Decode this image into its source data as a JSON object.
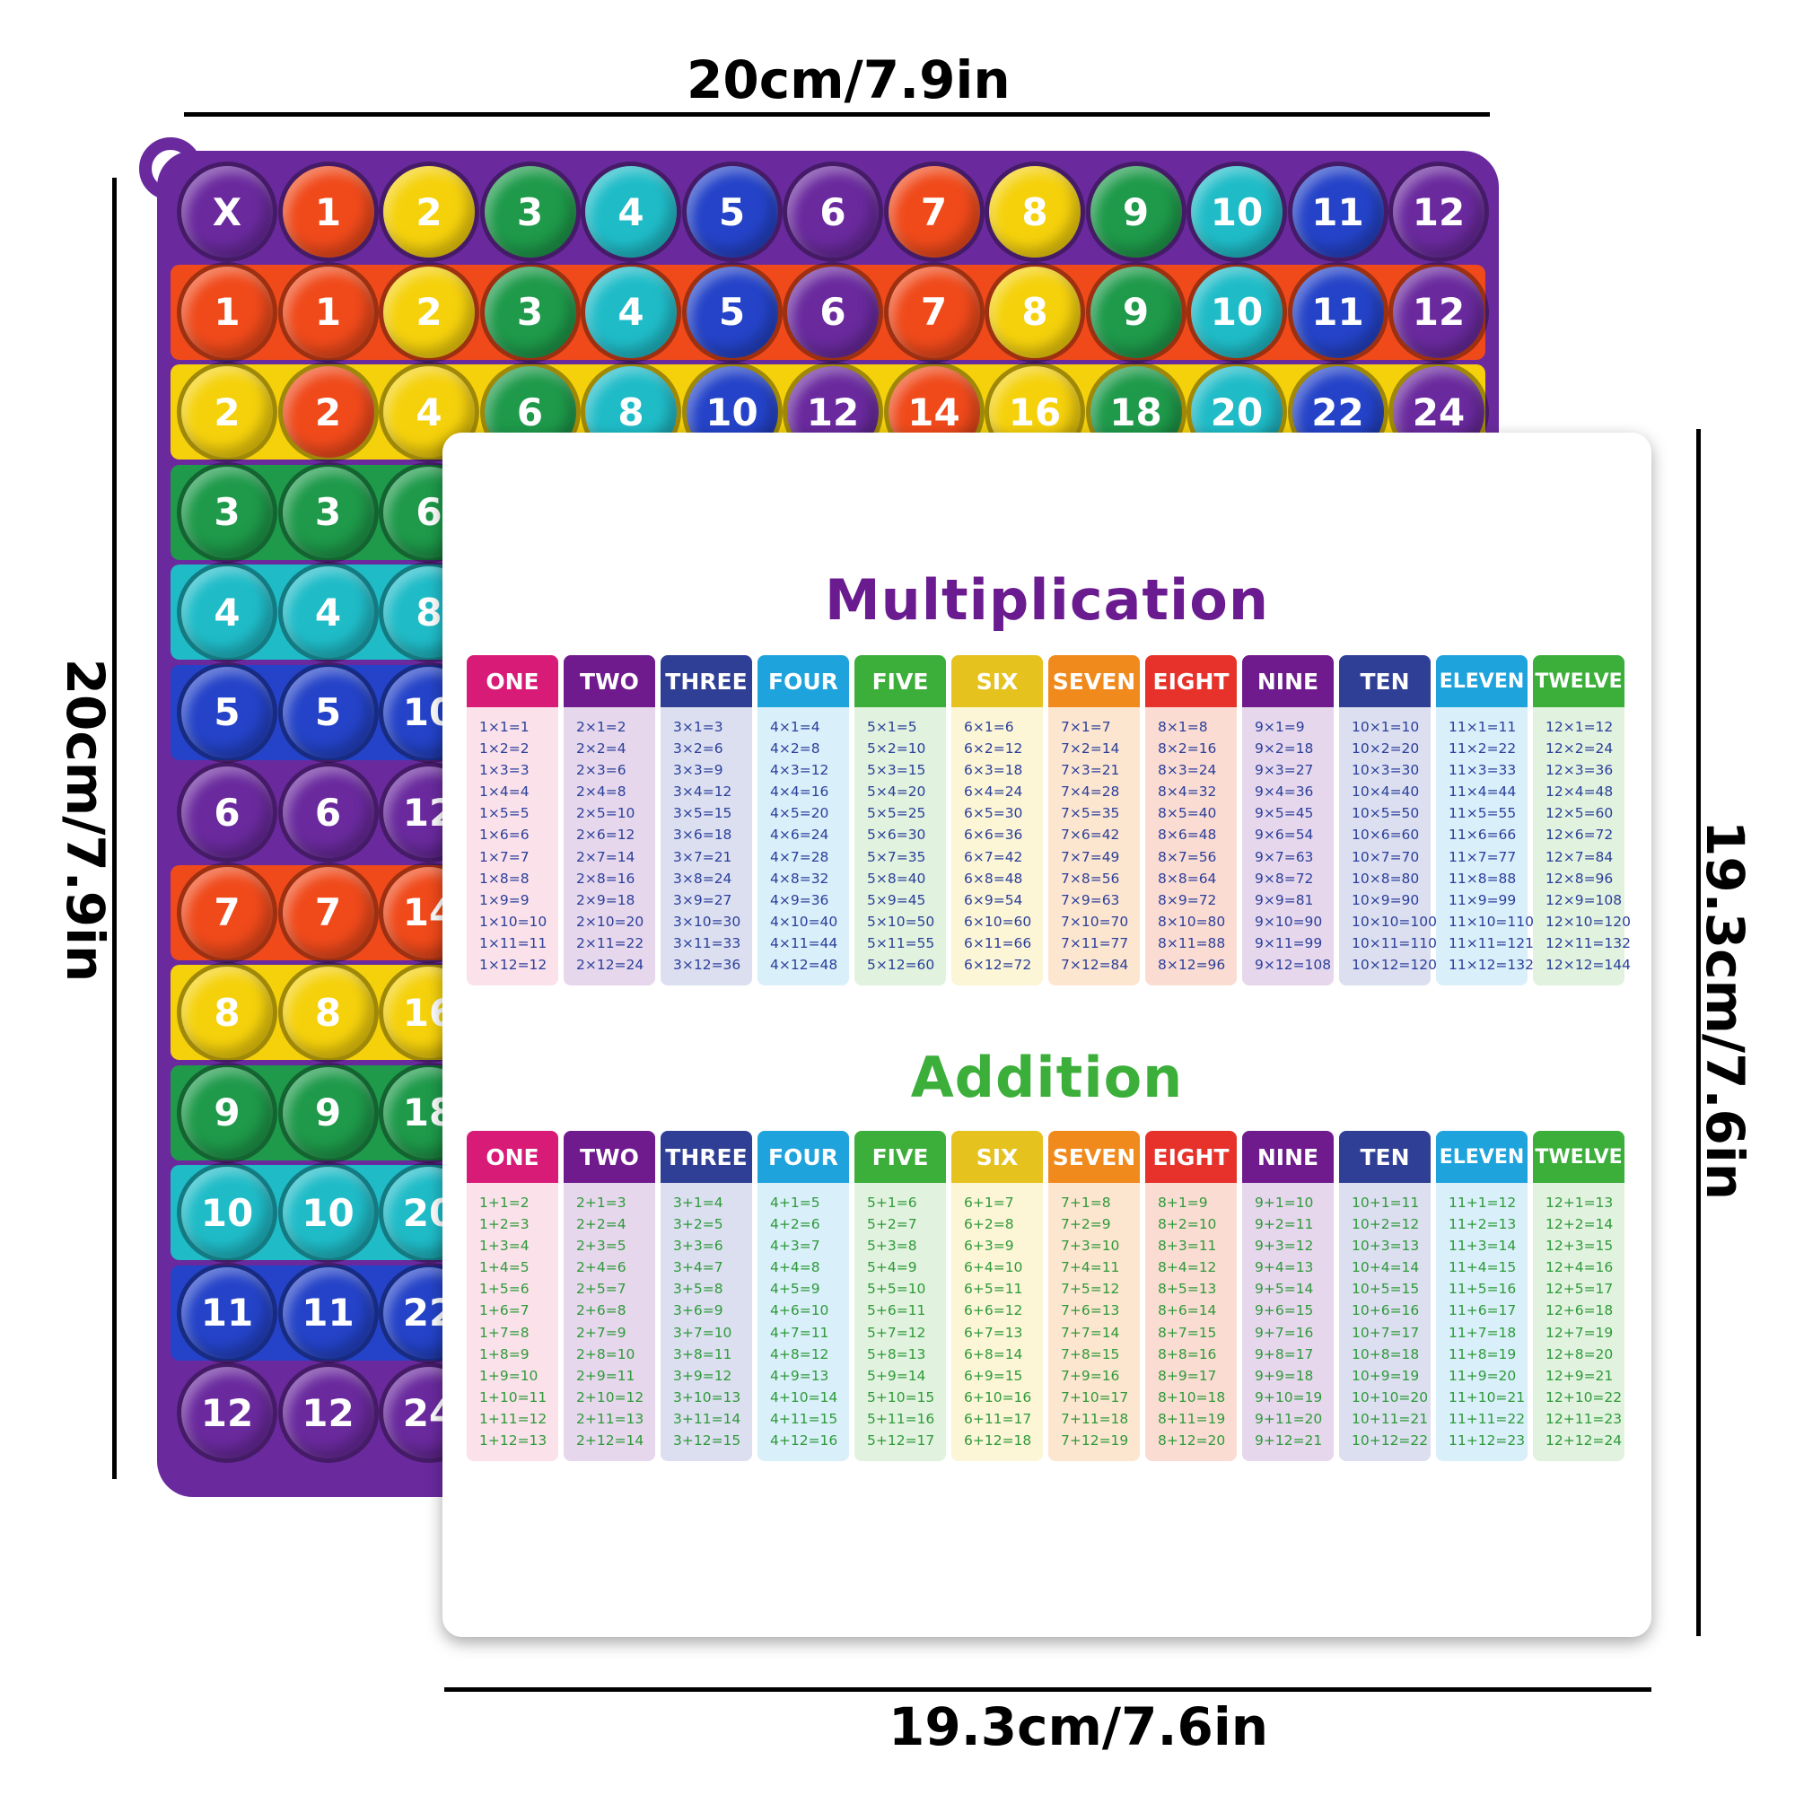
{
  "dimensions": {
    "board_width": "20cm/7.9in",
    "board_height": "20cm/7.9in",
    "card_width": "19.3cm/7.6in",
    "card_height": "19.3cm/7.6in"
  },
  "board": {
    "header": [
      "X",
      "1",
      "2",
      "3",
      "4",
      "5",
      "6",
      "7",
      "8",
      "9",
      "10",
      "11",
      "12"
    ],
    "rows": [
      [
        "1",
        "1",
        "2",
        "3",
        "4",
        "5",
        "6",
        "7",
        "8",
        "9",
        "10",
        "11",
        "12"
      ],
      [
        "2",
        "2",
        "4",
        "6",
        "8",
        "10",
        "12",
        "14",
        "16",
        "18",
        "20",
        "22",
        "24"
      ],
      [
        "3",
        "3",
        "6"
      ],
      [
        "4",
        "4",
        "8"
      ],
      [
        "5",
        "5",
        "10"
      ],
      [
        "6",
        "6",
        "12"
      ],
      [
        "7",
        "7",
        "14"
      ],
      [
        "8",
        "8",
        "16"
      ],
      [
        "9",
        "9",
        "18"
      ],
      [
        "10",
        "10",
        "20"
      ],
      [
        "11",
        "11",
        "22"
      ],
      [
        "12",
        "12",
        "24"
      ]
    ],
    "column_colors": [
      "#6a2a9e",
      "#f04a1b",
      "#f5d10c",
      "#1e9a4a",
      "#1fbcc8",
      "#2443c8",
      "#6a2a9e",
      "#f04a1b",
      "#f5d10c",
      "#1e9a4a",
      "#1fbcc8",
      "#2443c8",
      "#6a2a9e"
    ],
    "row_colors": [
      "#6a2a9e",
      "#f04a1b",
      "#f5d10c",
      "#1e9a4a",
      "#1fbcc8",
      "#2443c8",
      "#6a2a9e",
      "#f04a1b",
      "#f5d10c",
      "#1e9a4a",
      "#1fbcc8",
      "#2443c8",
      "#6a2a9e"
    ]
  },
  "multiplication": {
    "title": "Multiplication",
    "title_color": "#6a1b8f",
    "text_color": "#2a3f9a",
    "columns": [
      {
        "head": "ONE",
        "color": "#d91b78",
        "bg": "#fbe1ea",
        "items": [
          "1×1=1",
          "1×2=2",
          "1×3=3",
          "1×4=4",
          "1×5=5",
          "1×6=6",
          "1×7=7",
          "1×8=8",
          "1×9=9",
          "1×10=10",
          "1×11=11",
          "1×12=12"
        ]
      },
      {
        "head": "TWO",
        "color": "#6f1b8e",
        "bg": "#e6d7ec",
        "items": [
          "2×1=2",
          "2×2=4",
          "2×3=6",
          "2×4=8",
          "2×5=10",
          "2×6=12",
          "2×7=14",
          "2×8=16",
          "2×9=18",
          "2×10=20",
          "2×11=22",
          "2×12=24"
        ]
      },
      {
        "head": "THREE",
        "color": "#2f3f96",
        "bg": "#dcdff0",
        "items": [
          "3×1=3",
          "3×2=6",
          "3×3=9",
          "3×4=12",
          "3×5=15",
          "3×6=18",
          "3×7=21",
          "3×8=24",
          "3×9=27",
          "3×10=30",
          "3×11=33",
          "3×12=36"
        ]
      },
      {
        "head": "FOUR",
        "color": "#1ea3dc",
        "bg": "#d9eff9",
        "items": [
          "4×1=4",
          "4×2=8",
          "4×3=12",
          "4×4=16",
          "4×5=20",
          "4×6=24",
          "4×7=28",
          "4×8=32",
          "4×9=36",
          "4×10=40",
          "4×11=44",
          "4×12=48"
        ]
      },
      {
        "head": "FIVE",
        "color": "#3cae3a",
        "bg": "#e1f2de",
        "items": [
          "5×1=5",
          "5×2=10",
          "5×3=15",
          "5×4=20",
          "5×5=25",
          "5×6=30",
          "5×7=35",
          "5×8=40",
          "5×9=45",
          "5×10=50",
          "5×11=55",
          "5×12=60"
        ]
      },
      {
        "head": "SIX",
        "color": "#e6c21e",
        "bg": "#fcf5d6",
        "items": [
          "6×1=6",
          "6×2=12",
          "6×3=18",
          "6×4=24",
          "6×5=30",
          "6×6=36",
          "6×7=42",
          "6×8=48",
          "6×9=54",
          "6×10=60",
          "6×11=66",
          "6×12=72"
        ]
      },
      {
        "head": "SEVEN",
        "color": "#f08a1c",
        "bg": "#fde6d0",
        "items": [
          "7×1=7",
          "7×2=14",
          "7×3=21",
          "7×4=28",
          "7×5=35",
          "7×6=42",
          "7×7=49",
          "7×8=56",
          "7×9=63",
          "7×10=70",
          "7×11=77",
          "7×12=84"
        ]
      },
      {
        "head": "EIGHT",
        "color": "#e6322b",
        "bg": "#fbdcd3",
        "items": [
          "8×1=8",
          "8×2=16",
          "8×3=24",
          "8×4=32",
          "8×5=40",
          "8×6=48",
          "8×7=56",
          "8×8=64",
          "8×9=72",
          "8×10=80",
          "8×11=88",
          "8×12=96"
        ]
      },
      {
        "head": "NINE",
        "color": "#6f1b8e",
        "bg": "#e6d7ec",
        "items": [
          "9×1=9",
          "9×2=18",
          "9×3=27",
          "9×4=36",
          "9×5=45",
          "9×6=54",
          "9×7=63",
          "9×8=72",
          "9×9=81",
          "9×10=90",
          "9×11=99",
          "9×12=108"
        ]
      },
      {
        "head": "TEN",
        "color": "#2f3f96",
        "bg": "#dcdff0",
        "items": [
          "10×1=10",
          "10×2=20",
          "10×3=30",
          "10×4=40",
          "10×5=50",
          "10×6=60",
          "10×7=70",
          "10×8=80",
          "10×9=90",
          "10×10=100",
          "10×11=110",
          "10×12=120"
        ]
      },
      {
        "head": "ELEVEN",
        "color": "#1ea3dc",
        "bg": "#d9eff9",
        "items": [
          "11×1=11",
          "11×2=22",
          "11×3=33",
          "11×4=44",
          "11×5=55",
          "11×6=66",
          "11×7=77",
          "11×8=88",
          "11×9=99",
          "11×10=110",
          "11×11=121",
          "11×12=132"
        ]
      },
      {
        "head": "TWELVE",
        "color": "#3cae3a",
        "bg": "#e1f2de",
        "items": [
          "12×1=12",
          "12×2=24",
          "12×3=36",
          "12×4=48",
          "12×5=60",
          "12×6=72",
          "12×7=84",
          "12×8=96",
          "12×9=108",
          "12×10=120",
          "12×11=132",
          "12×12=144"
        ]
      }
    ]
  },
  "addition": {
    "title": "Addition",
    "title_color": "#3cae3a",
    "text_color": "#2e9a3a",
    "columns": [
      {
        "head": "ONE",
        "color": "#d91b78",
        "bg": "#fbe1ea",
        "items": [
          "1+1=2",
          "1+2=3",
          "1+3=4",
          "1+4=5",
          "1+5=6",
          "1+6=7",
          "1+7=8",
          "1+8=9",
          "1+9=10",
          "1+10=11",
          "1+11=12",
          "1+12=13"
        ]
      },
      {
        "head": "TWO",
        "color": "#6f1b8e",
        "bg": "#e6d7ec",
        "items": [
          "2+1=3",
          "2+2=4",
          "2+3=5",
          "2+4=6",
          "2+5=7",
          "2+6=8",
          "2+7=9",
          "2+8=10",
          "2+9=11",
          "2+10=12",
          "2+11=13",
          "2+12=14"
        ]
      },
      {
        "head": "THREE",
        "color": "#2f3f96",
        "bg": "#dcdff0",
        "items": [
          "3+1=4",
          "3+2=5",
          "3+3=6",
          "3+4=7",
          "3+5=8",
          "3+6=9",
          "3+7=10",
          "3+8=11",
          "3+9=12",
          "3+10=13",
          "3+11=14",
          "3+12=15"
        ]
      },
      {
        "head": "FOUR",
        "color": "#1ea3dc",
        "bg": "#d9eff9",
        "items": [
          "4+1=5",
          "4+2=6",
          "4+3=7",
          "4+4=8",
          "4+5=9",
          "4+6=10",
          "4+7=11",
          "4+8=12",
          "4+9=13",
          "4+10=14",
          "4+11=15",
          "4+12=16"
        ]
      },
      {
        "head": "FIVE",
        "color": "#3cae3a",
        "bg": "#e1f2de",
        "items": [
          "5+1=6",
          "5+2=7",
          "5+3=8",
          "5+4=9",
          "5+5=10",
          "5+6=11",
          "5+7=12",
          "5+8=13",
          "5+9=14",
          "5+10=15",
          "5+11=16",
          "5+12=17"
        ]
      },
      {
        "head": "SIX",
        "color": "#e6c21e",
        "bg": "#fcf5d6",
        "items": [
          "6+1=7",
          "6+2=8",
          "6+3=9",
          "6+4=10",
          "6+5=11",
          "6+6=12",
          "6+7=13",
          "6+8=14",
          "6+9=15",
          "6+10=16",
          "6+11=17",
          "6+12=18"
        ]
      },
      {
        "head": "SEVEN",
        "color": "#f08a1c",
        "bg": "#fde6d0",
        "items": [
          "7+1=8",
          "7+2=9",
          "7+3=10",
          "7+4=11",
          "7+5=12",
          "7+6=13",
          "7+7=14",
          "7+8=15",
          "7+9=16",
          "7+10=17",
          "7+11=18",
          "7+12=19"
        ]
      },
      {
        "head": "EIGHT",
        "color": "#e6322b",
        "bg": "#fbdcd3",
        "items": [
          "8+1=9",
          "8+2=10",
          "8+3=11",
          "8+4=12",
          "8+5=13",
          "8+6=14",
          "8+7=15",
          "8+8=16",
          "8+9=17",
          "8+10=18",
          "8+11=19",
          "8+12=20"
        ]
      },
      {
        "head": "NINE",
        "color": "#6f1b8e",
        "bg": "#e6d7ec",
        "items": [
          "9+1=10",
          "9+2=11",
          "9+3=12",
          "9+4=13",
          "9+5=14",
          "9+6=15",
          "9+7=16",
          "9+8=17",
          "9+9=18",
          "9+10=19",
          "9+11=20",
          "9+12=21"
        ]
      },
      {
        "head": "TEN",
        "color": "#2f3f96",
        "bg": "#dcdff0",
        "items": [
          "10+1=11",
          "10+2=12",
          "10+3=13",
          "10+4=14",
          "10+5=15",
          "10+6=16",
          "10+7=17",
          "10+8=18",
          "10+9=19",
          "10+10=20",
          "10+11=21",
          "10+12=22"
        ]
      },
      {
        "head": "ELEVEN",
        "color": "#1ea3dc",
        "bg": "#d9eff9",
        "items": [
          "11+1=12",
          "11+2=13",
          "11+3=14",
          "11+4=15",
          "11+5=16",
          "11+6=17",
          "11+7=18",
          "11+8=19",
          "11+9=20",
          "11+10=21",
          "11+11=22",
          "11+12=23"
        ]
      },
      {
        "head": "TWELVE",
        "color": "#3cae3a",
        "bg": "#e1f2de",
        "items": [
          "12+1=13",
          "12+2=14",
          "12+3=15",
          "12+4=16",
          "12+5=17",
          "12+6=18",
          "12+7=19",
          "12+8=20",
          "12+9=21",
          "12+10=22",
          "12+11=23",
          "12+12=24"
        ]
      }
    ]
  }
}
